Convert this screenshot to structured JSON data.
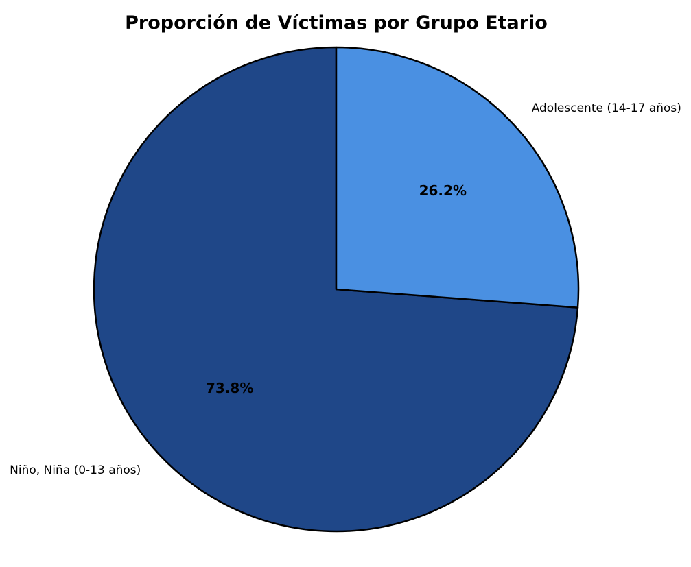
{
  "chart_data": {
    "type": "pie",
    "title": "Proporción de Víctimas por Grupo Etario",
    "slices": [
      {
        "label": "Niño, Niña (0-13 años)",
        "value": 73.8,
        "pct_label": "73.8%",
        "color": "#1f4788"
      },
      {
        "label": "Adolescente (14-17 años)",
        "value": 26.2,
        "pct_label": "26.2%",
        "color": "#4a90e2"
      }
    ],
    "start_angle": "top",
    "direction": "counterclockwise",
    "edge_color": "#000000",
    "legend": "none"
  }
}
